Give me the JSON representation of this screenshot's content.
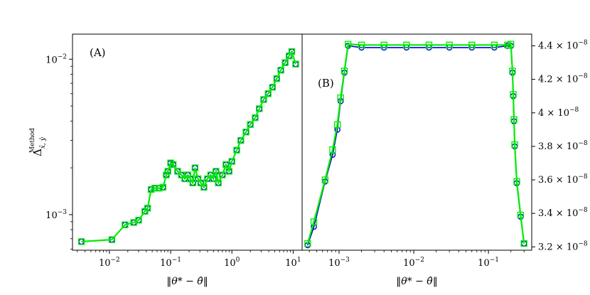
{
  "chart_data": [
    {
      "type": "line",
      "panel_label": "(A)",
      "xscale": "log",
      "yscale": "log",
      "xlim": [
        0.0025,
        14
      ],
      "ylim": [
        0.00059,
        0.0145
      ],
      "xlabel": "‖θ* − θ̂‖",
      "ylabel": "Δ",
      "ylabel_sub": "x̂, ŷ",
      "ylabel_sup": "Method",
      "x_ticks": [
        {
          "value": 0.01,
          "base": "10",
          "exp": "−2"
        },
        {
          "value": 0.1,
          "base": "10",
          "exp": "−1"
        },
        {
          "value": 1,
          "base": "10",
          "exp": "0"
        },
        {
          "value": 10,
          "base": "10",
          "exp": "1"
        }
      ],
      "y_ticks": [
        {
          "value": 0.001,
          "base": "10",
          "exp": "−3"
        },
        {
          "value": 0.01,
          "base": "10",
          "exp": "−2"
        }
      ],
      "series": [
        {
          "color": "#0000cc",
          "marker": "circle",
          "x": [
            0.0035,
            0.011,
            0.018,
            0.025,
            0.03,
            0.038,
            0.042,
            0.048,
            0.055,
            0.065,
            0.075,
            0.085,
            0.09,
            0.1,
            0.11,
            0.13,
            0.15,
            0.17,
            0.19,
            0.21,
            0.23,
            0.25,
            0.28,
            0.31,
            0.35,
            0.4,
            0.45,
            0.5,
            0.55,
            0.6,
            0.7,
            0.8,
            0.9,
            1.0,
            1.2,
            1.4,
            1.7,
            2.0,
            2.4,
            2.8,
            3.3,
            3.9,
            4.6,
            5.4,
            6.3,
            7.4,
            8.6,
            9.5,
            11
          ],
          "y": [
            0.00067,
            0.00069,
            0.00086,
            0.00089,
            0.00092,
            0.00105,
            0.0011,
            0.00145,
            0.00148,
            0.00148,
            0.0015,
            0.0018,
            0.0019,
            0.00215,
            0.0021,
            0.0019,
            0.0018,
            0.0017,
            0.0018,
            0.0017,
            0.0016,
            0.002,
            0.0017,
            0.0016,
            0.0015,
            0.0017,
            0.0018,
            0.0017,
            0.0019,
            0.0016,
            0.0018,
            0.0021,
            0.0019,
            0.0022,
            0.0026,
            0.003,
            0.0034,
            0.0038,
            0.0042,
            0.0048,
            0.0055,
            0.006,
            0.0066,
            0.0075,
            0.0085,
            0.0095,
            0.0105,
            0.0112,
            0.0093
          ]
        },
        {
          "color": "#00ee00",
          "marker": "square",
          "x": [
            0.0035,
            0.011,
            0.018,
            0.025,
            0.03,
            0.038,
            0.042,
            0.048,
            0.055,
            0.065,
            0.075,
            0.085,
            0.09,
            0.1,
            0.11,
            0.13,
            0.15,
            0.17,
            0.19,
            0.21,
            0.23,
            0.25,
            0.28,
            0.31,
            0.35,
            0.4,
            0.45,
            0.5,
            0.55,
            0.6,
            0.7,
            0.8,
            0.9,
            1.0,
            1.2,
            1.4,
            1.7,
            2.0,
            2.4,
            2.8,
            3.3,
            3.9,
            4.6,
            5.4,
            6.3,
            7.4,
            8.6,
            9.5,
            11
          ],
          "y": [
            0.00067,
            0.00069,
            0.00086,
            0.00089,
            0.00092,
            0.00105,
            0.0011,
            0.00145,
            0.00148,
            0.00148,
            0.0015,
            0.0018,
            0.0019,
            0.00215,
            0.0021,
            0.0019,
            0.0018,
            0.0017,
            0.0018,
            0.0017,
            0.0016,
            0.002,
            0.0017,
            0.0016,
            0.0015,
            0.0017,
            0.0018,
            0.0017,
            0.0019,
            0.0016,
            0.0018,
            0.0021,
            0.0019,
            0.0022,
            0.0026,
            0.003,
            0.0034,
            0.0038,
            0.0042,
            0.0048,
            0.0055,
            0.006,
            0.0066,
            0.0075,
            0.0085,
            0.0095,
            0.0105,
            0.0112,
            0.0093
          ]
        }
      ]
    },
    {
      "type": "line",
      "panel_label": "(B)",
      "xscale": "log",
      "yscale": "linear",
      "y_axis_side": "right",
      "xlim": [
        0.00032,
        0.38
      ],
      "ylim": [
        3.18e-08,
        4.47e-08
      ],
      "xlabel": "‖θ* − θ̂‖",
      "x_ticks": [
        {
          "value": 0.001,
          "base": "10",
          "exp": "−3"
        },
        {
          "value": 0.01,
          "base": "10",
          "exp": "−2"
        },
        {
          "value": 0.1,
          "base": "10",
          "exp": "−1"
        }
      ],
      "y_ticks": [
        {
          "value": 3.2e-08,
          "mant": "3.2 × 10",
          "exp": "−8"
        },
        {
          "value": 3.4e-08,
          "mant": "3.4 × 10",
          "exp": "−8"
        },
        {
          "value": 3.6e-08,
          "mant": "3.6 × 10",
          "exp": "−8"
        },
        {
          "value": 3.8e-08,
          "mant": "3.8 × 10",
          "exp": "−8"
        },
        {
          "value": 4e-08,
          "mant": "4 × 10",
          "exp": "−8"
        },
        {
          "value": 4.2e-08,
          "mant": "4.2 × 10",
          "exp": "−8"
        },
        {
          "value": 4.4e-08,
          "mant": "4.4 × 10",
          "exp": "−8"
        }
      ],
      "series": [
        {
          "color": "#0000cc",
          "marker": "circle",
          "x": [
            0.00038,
            0.00046,
            0.00065,
            0.00082,
            0.00095,
            0.00105,
            0.00118,
            0.00132,
            0.002,
            0.004,
            0.008,
            0.016,
            0.03,
            0.06,
            0.12,
            0.18,
            0.2,
            0.21,
            0.215,
            0.22,
            0.225,
            0.24,
            0.27,
            0.3
          ],
          "y": [
            3.21e-08,
            3.32e-08,
            3.59e-08,
            3.75e-08,
            3.9e-08,
            4.07e-08,
            4.24e-08,
            4.4e-08,
            4.39e-08,
            4.39e-08,
            4.39e-08,
            4.39e-08,
            4.39e-08,
            4.39e-08,
            4.39e-08,
            4.4e-08,
            4.4e-08,
            4.24e-08,
            4.1e-08,
            3.95e-08,
            3.8e-08,
            3.58e-08,
            3.38e-08,
            3.22e-08
          ]
        },
        {
          "color": "#00ee00",
          "marker": "square",
          "x": [
            0.00038,
            0.00046,
            0.00065,
            0.00082,
            0.00095,
            0.00105,
            0.00118,
            0.00132,
            0.002,
            0.004,
            0.008,
            0.016,
            0.03,
            0.06,
            0.12,
            0.18,
            0.2,
            0.21,
            0.215,
            0.22,
            0.225,
            0.24,
            0.27,
            0.3
          ],
          "y": [
            3.22e-08,
            3.35e-08,
            3.6e-08,
            3.78e-08,
            3.93e-08,
            4.09e-08,
            4.25e-08,
            4.41e-08,
            4.405e-08,
            4.405e-08,
            4.405e-08,
            4.405e-08,
            4.405e-08,
            4.405e-08,
            4.405e-08,
            4.405e-08,
            4.41e-08,
            4.25e-08,
            4.11e-08,
            3.96e-08,
            3.81e-08,
            3.59e-08,
            3.39e-08,
            3.22e-08
          ]
        }
      ]
    }
  ]
}
